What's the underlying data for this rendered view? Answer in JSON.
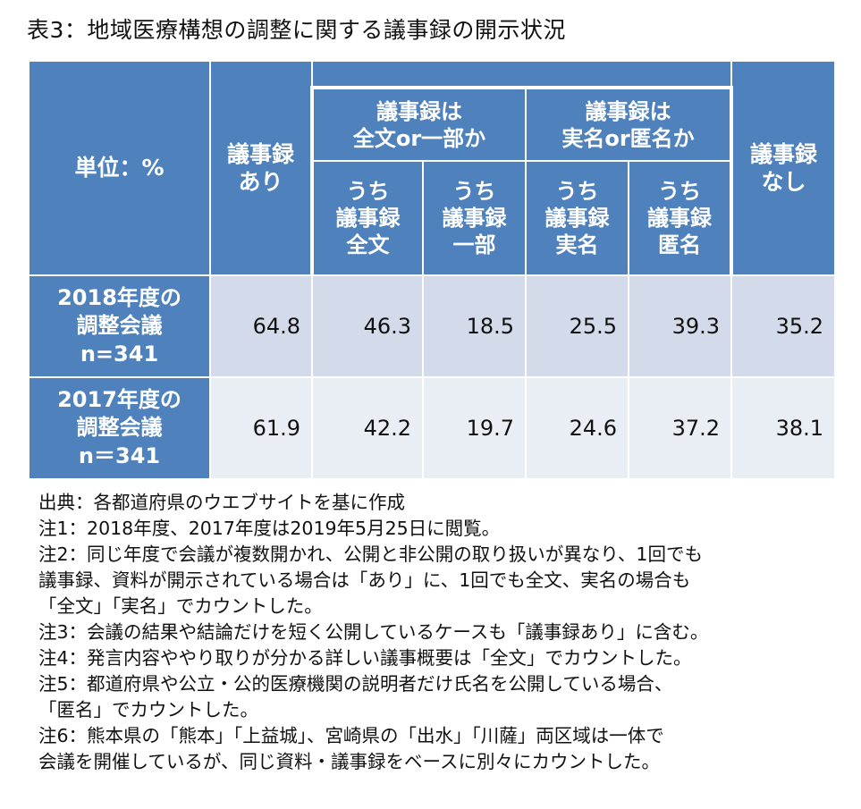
{
  "title": "表3：地域医療構想の調整に関する議事録の開示状況",
  "table": {
    "unit": "単位：%",
    "col_ari": [
      "議事録",
      "あり"
    ],
    "group_a": [
      "議事録は",
      "全文or一部か"
    ],
    "group_b": [
      "議事録は",
      "実名or匿名か"
    ],
    "col_nashi": [
      "議事録",
      "なし"
    ],
    "sub_zenbun": [
      "うち",
      "議事録",
      "全文"
    ],
    "sub_ichibu": [
      "うち",
      "議事録",
      "一部"
    ],
    "sub_jitsumei": [
      "うち",
      "議事録",
      "実名"
    ],
    "sub_tokumei": [
      "うち",
      "議事録",
      "匿名"
    ],
    "rows": [
      {
        "label": [
          "2018年度の",
          "調整会議",
          "n=341"
        ],
        "values": [
          "64.8",
          "46.3",
          "18.5",
          "25.5",
          "39.3",
          "35.2"
        ]
      },
      {
        "label": [
          "2017年度の",
          "調整会議",
          "n＝341"
        ],
        "values": [
          "61.9",
          "42.2",
          "19.7",
          "24.6",
          "37.2",
          "38.1"
        ]
      }
    ]
  },
  "notes": [
    "出典：各都道府県のウエブサイトを基に作成",
    "注1：2018年度、2017年度は2019年5月25日に閲覧。",
    "注2：同じ年度で会議が複数開かれ、公開と非公開の取り扱いが異なり、1回でも",
    "議事録、資料が開示されている場合は「あり」に、1回でも全文、実名の場合も",
    "「全文」「実名」でカウントした。",
    "注3：会議の結果や結論だけを短く公開しているケースも「議事録あり」に含む。",
    "注4：発言内容ややり取りが分かる詳しい議事概要は「全文」でカウントした。",
    "注5：都道府県や公立・公的医療機関の説明者だけ氏名を公開している場合、",
    "「匿名」でカウントした。",
    "注6：熊本県の「熊本」「上益城」、宮崎県の「出水」「川薩」両区域は一体で",
    "会議を開催しているが、同じ資料・議事録をベースに別々にカウントした。"
  ]
}
